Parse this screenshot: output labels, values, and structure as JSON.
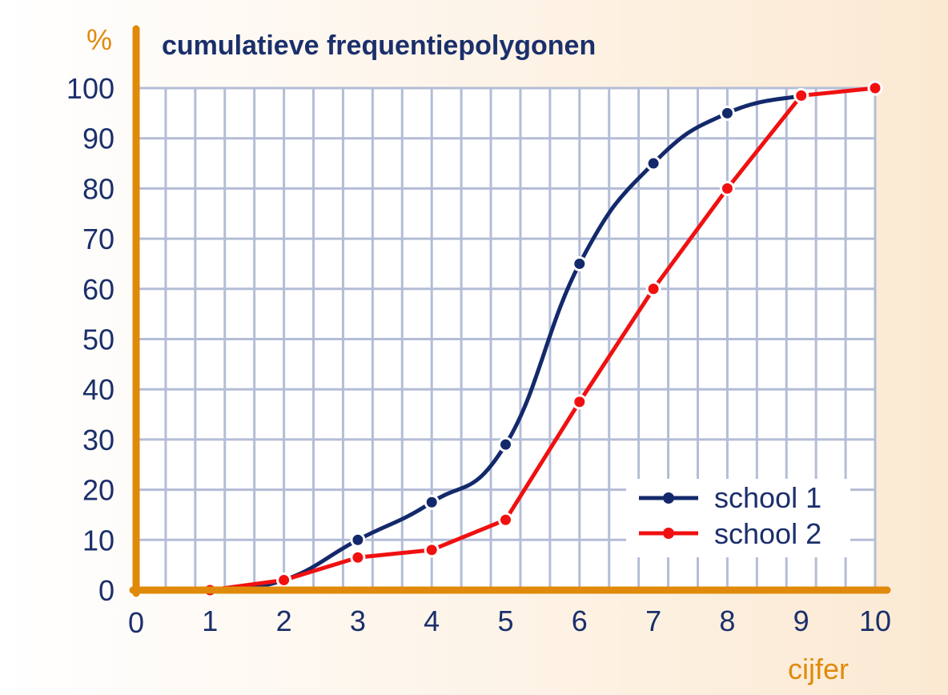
{
  "chart_data": {
    "type": "line",
    "title": "cumulatieve frequentiepolygonen",
    "ylabel": "%",
    "xlabel": "cijfer",
    "x_origin_label": "0",
    "xlim": [
      0,
      10
    ],
    "ylim": [
      0,
      100
    ],
    "x_ticks": [
      "1",
      "2",
      "3",
      "4",
      "5",
      "6",
      "7",
      "8",
      "9",
      "10"
    ],
    "y_ticks": [
      "0",
      "10",
      "20",
      "30",
      "40",
      "50",
      "60",
      "70",
      "80",
      "90",
      "100"
    ],
    "grid": true,
    "legend_position": "bottom-right",
    "series": [
      {
        "name": "school 1",
        "color": "#13296b",
        "smooth": true,
        "x": [
          1,
          2,
          3,
          4,
          5,
          6,
          7,
          8,
          9
        ],
        "y": [
          0,
          2,
          10,
          17.5,
          29,
          65,
          85,
          95,
          98.5
        ]
      },
      {
        "name": "school 2",
        "color": "#f01010",
        "smooth": false,
        "x": [
          1,
          2,
          3,
          4,
          5,
          6,
          7,
          8,
          9,
          10
        ],
        "y": [
          0,
          2,
          6.5,
          8,
          14,
          37.5,
          60,
          80,
          98.5,
          100
        ]
      }
    ]
  },
  "colors": {
    "axis": "#e08a0b",
    "grid": "#b4bdd6",
    "plot_background": "#ffffff"
  }
}
